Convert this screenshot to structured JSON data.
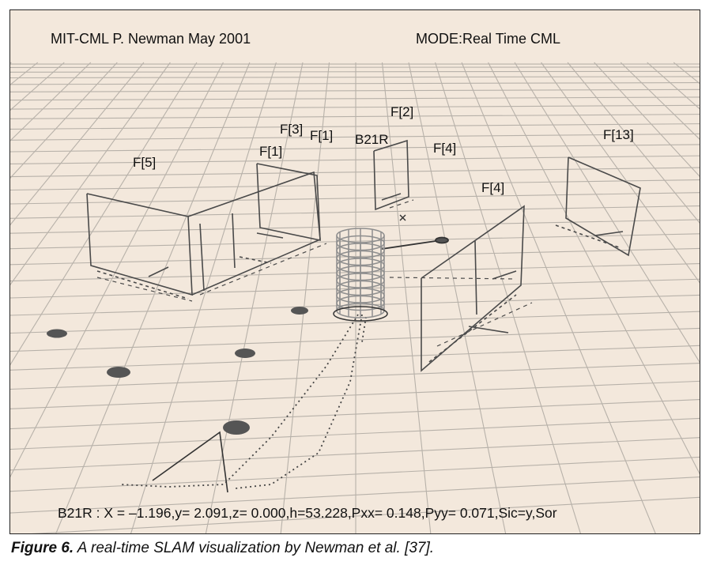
{
  "figure": {
    "hud_left": "MIT-CML P. Newman May 2001",
    "hud_right": "MODE:Real Time CML",
    "status_line": "B21R : X = –1.196,y= 2.091,z= 0.000,h=53.228,Pxx= 0.148,Pyy= 0.071,Sic=y,Sor",
    "labels": [
      "F[5]",
      "F[1]",
      "F[3]",
      "F[1]",
      "F[2]",
      "B21R",
      "F[4]",
      "F[4]",
      "F[13]"
    ]
  },
  "caption": {
    "prefix": "Figure 6.",
    "text": " A real-time SLAM visualization by Newman et al. [37]."
  },
  "colors": {
    "background": "#f3e8dc",
    "grid": "#b7b1a9",
    "feature_lines": "#444444",
    "robot": "#8e8e8e"
  }
}
